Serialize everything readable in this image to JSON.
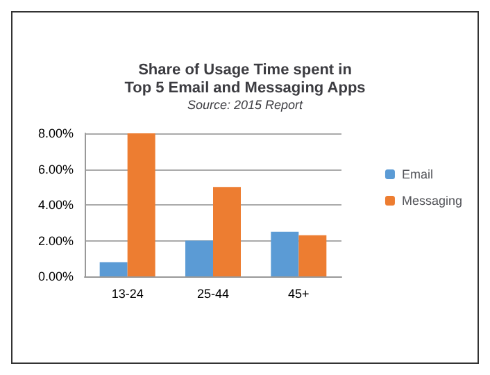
{
  "chart_data": {
    "type": "bar",
    "title": "Share of Usage Time spent in\nTop 5 Email and Messaging Apps",
    "subtitle": "Source: 2015 Report",
    "categories": [
      "13-24",
      "25-44",
      "45+"
    ],
    "series": [
      {
        "name": "Email",
        "color": "#5b9bd5",
        "values": [
          0.8,
          2.0,
          2.5
        ]
      },
      {
        "name": "Messaging",
        "color": "#ed7d31",
        "values": [
          8.0,
          5.0,
          2.3
        ]
      }
    ],
    "ylim": [
      0,
      8
    ],
    "yticks": [
      {
        "value": 0,
        "label": "0.00%"
      },
      {
        "value": 2,
        "label": "2.00%"
      },
      {
        "value": 4,
        "label": "4.00%"
      },
      {
        "value": 6,
        "label": "6.00%"
      },
      {
        "value": 8,
        "label": "8.00%"
      }
    ],
    "grid": "y",
    "legend": "right"
  }
}
